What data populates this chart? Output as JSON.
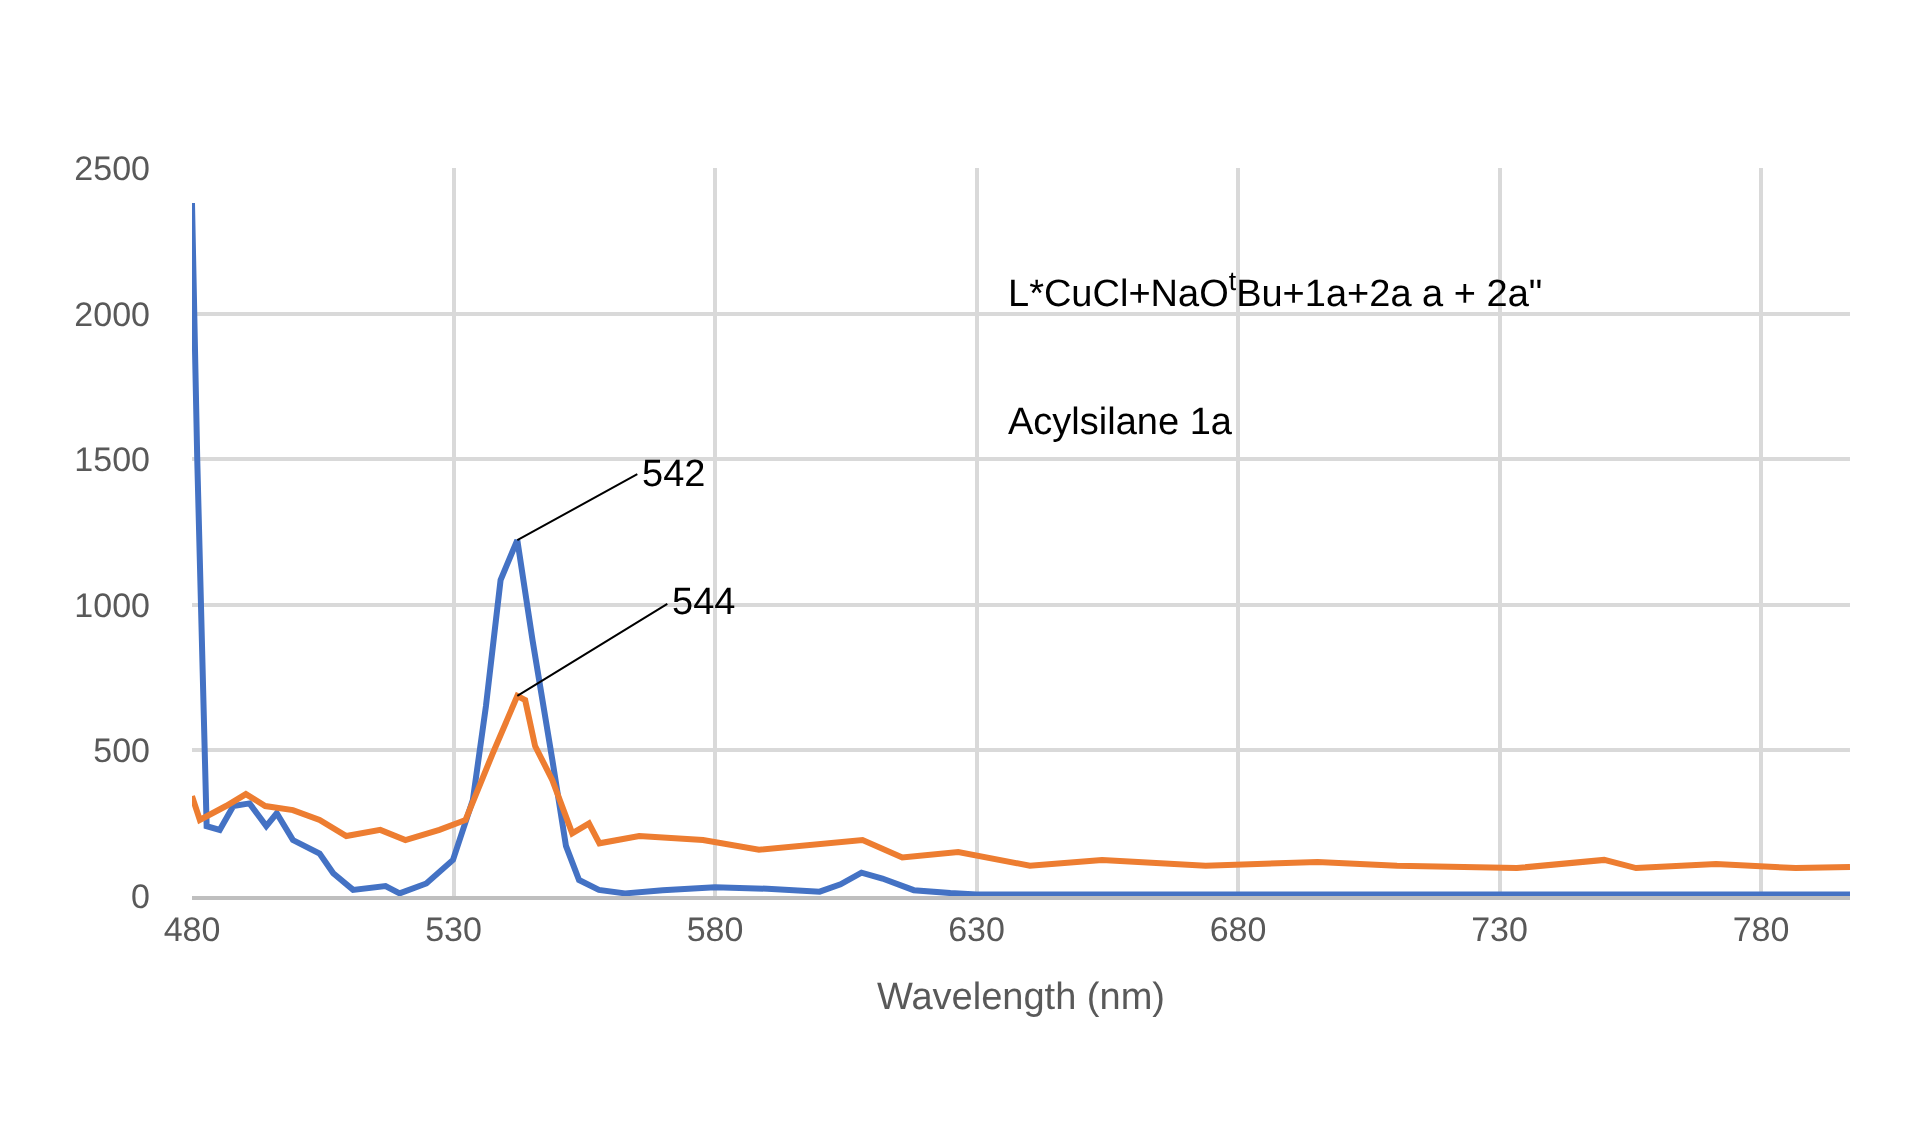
{
  "chart_data": {
    "type": "line",
    "xlabel": "Wavelength (nm)",
    "xlim": [
      480,
      797
    ],
    "xticks": [
      480,
      530,
      580,
      630,
      680,
      730,
      780
    ],
    "ylim": [
      0,
      2500
    ],
    "yticks": [
      0,
      500,
      1000,
      1500,
      2000,
      2500
    ],
    "grid": true,
    "marker": "none",
    "line_style": "solid",
    "series": [
      {
        "color": "#4472c4",
        "x": [
          480,
          481,
          482.8,
          485.3,
          487.9,
          491,
          494.2,
          496.2,
          499.3,
          504.4,
          507,
          510.8,
          517,
          519.7,
          524.8,
          529.9,
          533.7,
          536.2,
          539,
          542.2,
          545.1,
          548.9,
          551.5,
          554,
          557.8,
          562.8,
          570,
          580,
          590,
          600,
          604,
          608,
          612,
          618,
          625,
          630,
          650,
          680,
          710,
          740,
          770,
          797
        ],
        "values": [
          2380,
          1500,
          240,
          227,
          309,
          318,
          240,
          284,
          192,
          146,
          78,
          21,
          34,
          9,
          43,
          124,
          330,
          652,
          1085,
          1222,
          879,
          467,
          172,
          55,
          21,
          9,
          20,
          30,
          25,
          15,
          40,
          80,
          60,
          20,
          10,
          5,
          5,
          5,
          5,
          5,
          5,
          5
        ]
      },
      {
        "color": "#ed7d31",
        "x": [
          480,
          481.5,
          486.5,
          490.3,
          494,
          499.3,
          504.4,
          509.5,
          516,
          520.8,
          527.3,
          532.3,
          537.5,
          542.2,
          543.7,
          545.6,
          548.9,
          552.7,
          555.9,
          557.9,
          565.5,
          577.7,
          588.4,
          608.2,
          615.8,
          626.5,
          640.2,
          654,
          673.8,
          695.2,
          710.4,
          733.3,
          750,
          756.1,
          771.4,
          786.6,
          797
        ],
        "values": [
          343,
          261,
          309,
          350,
          309,
          295,
          261,
          206,
          227,
          192,
          227,
          261,
          490,
          687,
          673,
          515,
          398,
          215,
          249,
          181,
          206,
          192,
          159,
          192,
          132,
          151,
          104,
          124,
          104,
          117,
          104,
          96,
          124,
          96,
          110,
          96,
          100
        ]
      }
    ],
    "annotations": [
      {
        "text": "542",
        "x": 542.2,
        "y": 1222
      },
      {
        "text": "544",
        "x": 542.2,
        "y": 687
      },
      "L*CuCl+NaO$^{t}$Bu+1a+2a a + 2a\"",
      "Acylsilane 1a"
    ]
  }
}
